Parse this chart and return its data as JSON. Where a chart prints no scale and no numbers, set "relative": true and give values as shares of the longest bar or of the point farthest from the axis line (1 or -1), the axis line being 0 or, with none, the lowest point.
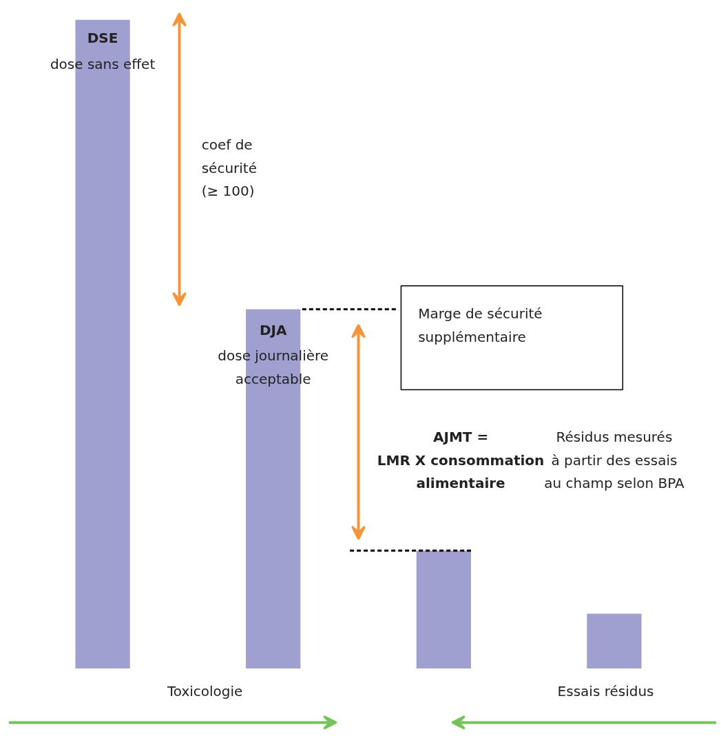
{
  "chart_data": {
    "type": "bar",
    "relative": true,
    "color": "#9f9fd0",
    "categories": [
      null,
      null,
      null,
      null
    ],
    "values": [
      1,
      0.554,
      0.182,
      0.085
    ],
    "ref_lines": [
      {
        "axis": "y",
        "value": 0.554,
        "color": "#000000",
        "line_style": "dashed"
      },
      {
        "axis": "y",
        "value": 0.182,
        "color": "#000000",
        "line_style": "dashed"
      }
    ],
    "annotations": [
      "DSE",
      "dose sans effet",
      "coef de\nsécurité\n(≥ 100)",
      "DJA",
      "dose journalière\nacceptable",
      "Marge de sécurité\nsupplémentaire",
      "AJMT =\nLMR X consommation\nalimentaire",
      "Résidus mesurés\nà partir des essais\nau champ selon BPA",
      "Toxicologie",
      "Essais résidus"
    ],
    "grid": false
  }
}
